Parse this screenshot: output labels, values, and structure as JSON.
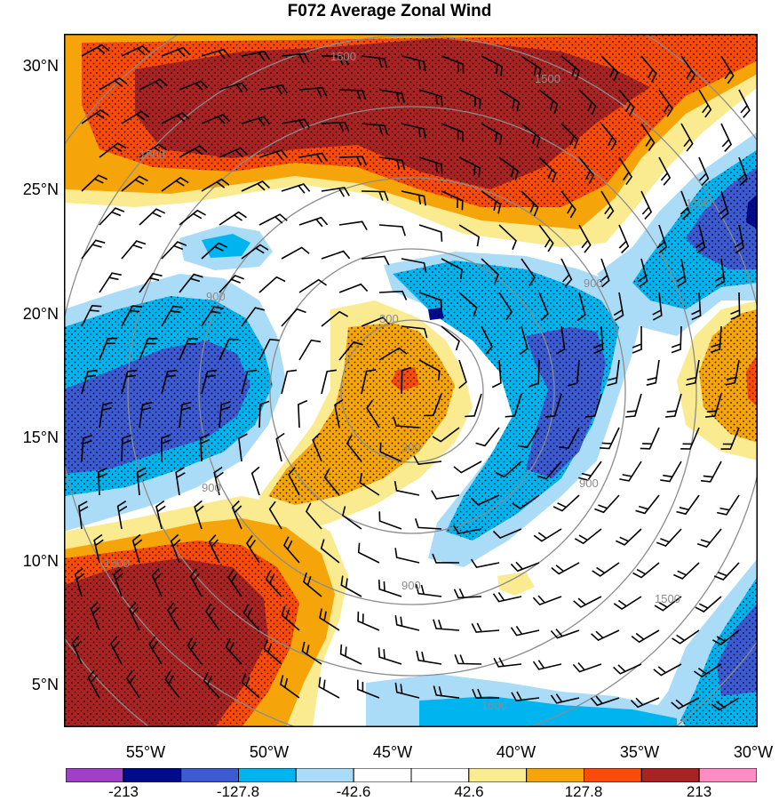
{
  "title": "F072 Average Zonal Wind",
  "latitude_labels": [
    "30°N",
    "25°N",
    "20°N",
    "15°N",
    "10°N",
    "5°N"
  ],
  "longitude_labels": [
    "55°W",
    "50°W",
    "45°W",
    "40°W",
    "35°W",
    "30°W"
  ],
  "contour_labels": [
    "1500",
    "1500",
    "1500",
    "900",
    "900",
    "900",
    "300",
    "300",
    "900",
    "900",
    "1500",
    "1500",
    "1500",
    "1500"
  ],
  "colorbar": {
    "labels": [
      "-213",
      "-127.8",
      "-42.6",
      "42.6",
      "127.8",
      "213"
    ],
    "colors": [
      "#a040c8",
      "#000a8c",
      "#3c5ad2",
      "#00b4f0",
      "#aadcf8",
      "#ffffff",
      "#ffffff",
      "#faeb91",
      "#f5a50a",
      "#fa4b0a",
      "#aa2323",
      "#ff8cc3"
    ]
  },
  "palette": {
    "dark_red": "#aa2323",
    "red": "#fa4b0a",
    "orange": "#f5a50a",
    "yellow": "#faeb91",
    "pale_blue": "#aadcf8",
    "cyan": "#00b4f0",
    "blue": "#3c5ad2",
    "navy": "#000a8c",
    "contour_gray": "#8c8c8c"
  },
  "icons": [
    "wind-barb-icon"
  ]
}
